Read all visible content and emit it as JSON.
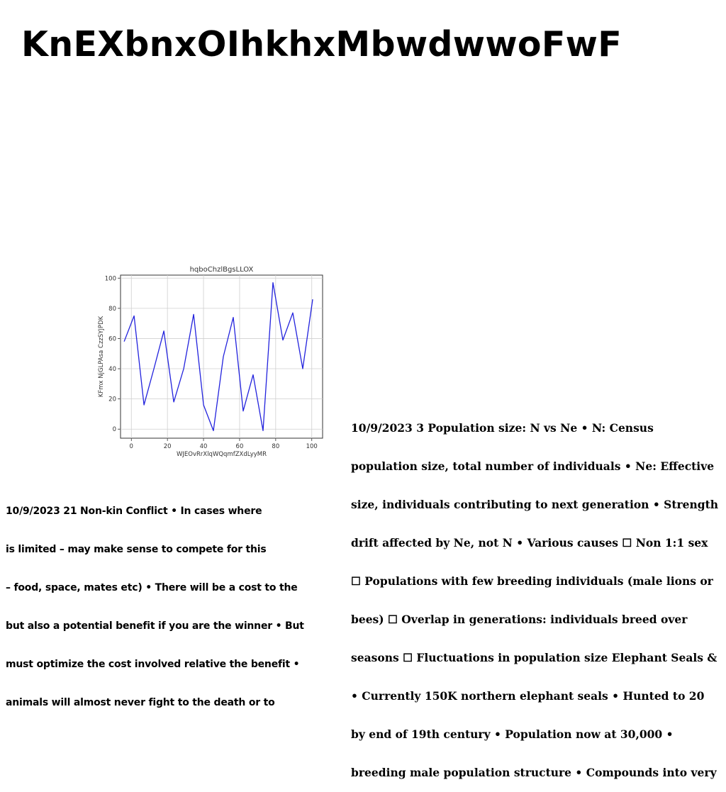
{
  "slide": {
    "title": "KnEXbnxOIhkhxMbwdwwoFwF",
    "right_text": [
      "10/9/2023 3 Population size: N vs Ne • N: Census",
      "population size, total number of individuals • Ne: Effective",
      "size, individuals contributing to next generation • Strength",
      "drift affected by Ne, not N • Various causes ☐ Non 1:1 sex",
      "☐ Populations with few breeding individuals (male lions or",
      "bees) ☐ Overlap in generations: individuals breed over",
      "seasons ☐ Fluctuations in population size Elephant Seals &",
      "• Currently 150K northern elephant seals • Hunted to 20",
      "by end of 19th century • Population now at 30,000 •",
      "breeding male population structure • Compounds into very"
    ],
    "left_text": [
      "10/9/2023 21 Non-kin Conflict • In cases where",
      "is limited – may make sense to compete for this",
      "– food, space, mates etc) • There will be a cost to the",
      "but also a potential benefit if you are the winner • But",
      "must optimize the cost involved relative the benefit •",
      "animals will almost never fight to the death or to"
    ]
  },
  "chart_data": {
    "type": "line",
    "title": "hqboChzlBgsLLOX",
    "xlabel": "WJEOvRrXlqWQqmfZXdLyyMR",
    "ylabel": "KFmx NjGLPAsa CzzSYJPDK",
    "xlim": [
      -6,
      106
    ],
    "ylim": [
      -6,
      102
    ],
    "xticks": [
      0,
      20,
      40,
      60,
      80,
      100
    ],
    "yticks": [
      0,
      20,
      40,
      60,
      80,
      100
    ],
    "grid": true,
    "color": "#2222dd",
    "series": [
      {
        "x": [
          -4,
          1.5,
          7,
          12.5,
          18,
          23.5,
          29,
          34.5,
          40,
          45.5,
          51,
          56.5,
          62,
          67.5,
          73,
          78.5,
          84,
          89.5,
          95,
          100.5
        ],
        "values": [
          58,
          75,
          16,
          40,
          65,
          18,
          40,
          76,
          16,
          -1,
          48,
          74,
          12,
          36,
          -1,
          97,
          59,
          77,
          40,
          86
        ]
      }
    ]
  }
}
